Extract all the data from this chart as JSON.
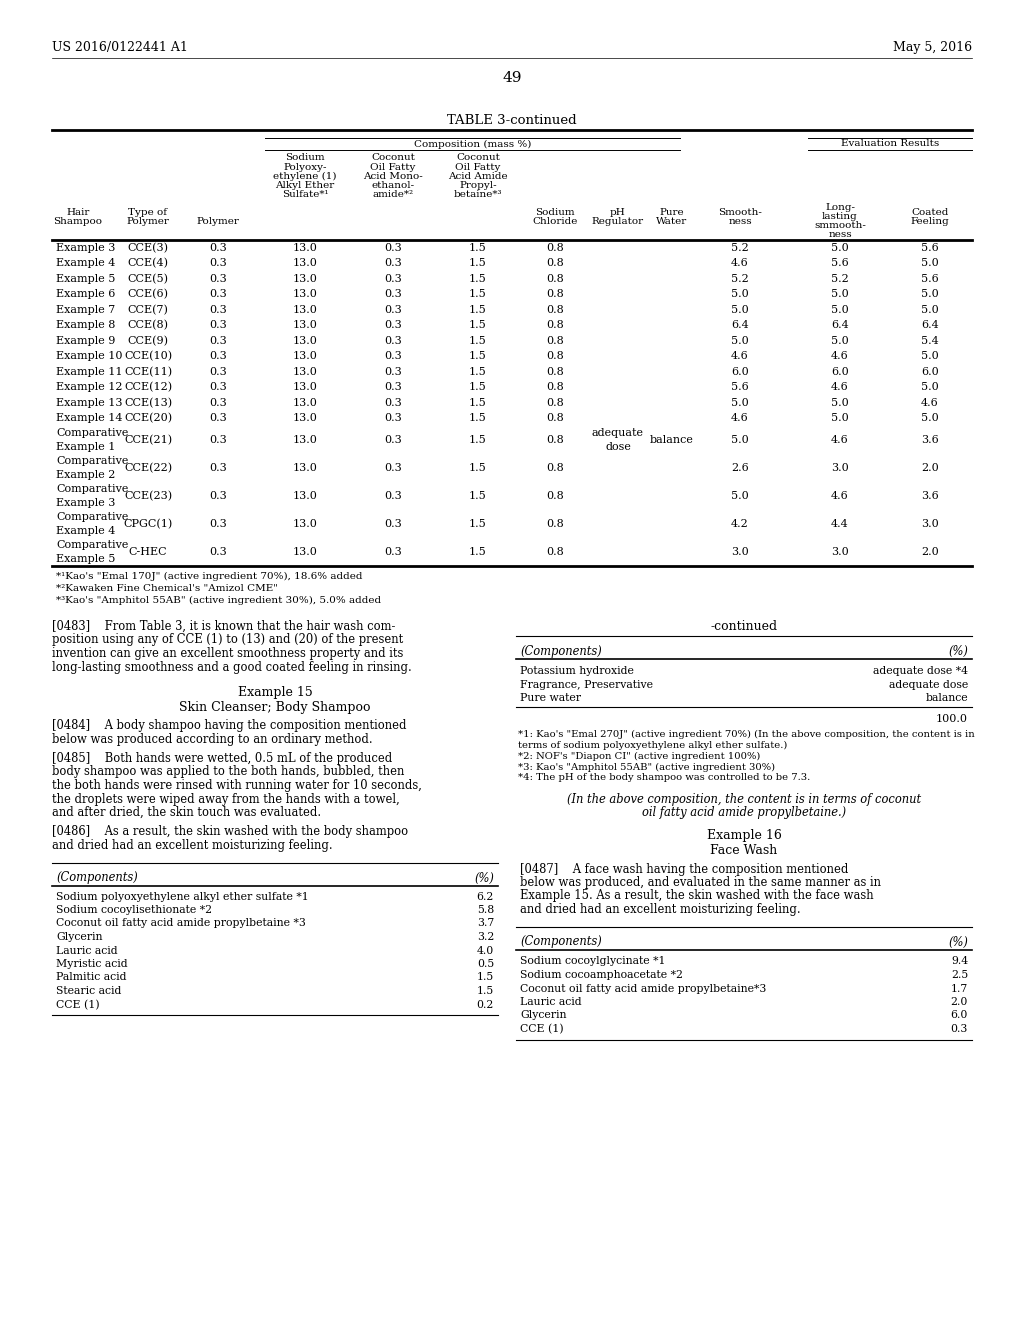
{
  "page_header_left": "US 2016/0122441 A1",
  "page_header_right": "May 5, 2016",
  "page_number": "49",
  "table_title": "TABLE 3-continued",
  "rows": [
    [
      "Example 3",
      "CCE(3)",
      "0.3",
      "13.0",
      "0.3",
      "1.5",
      "0.8",
      "",
      "",
      "5.2",
      "5.0",
      "5.6"
    ],
    [
      "Example 4",
      "CCE(4)",
      "0.3",
      "13.0",
      "0.3",
      "1.5",
      "0.8",
      "",
      "",
      "4.6",
      "5.6",
      "5.0"
    ],
    [
      "Example 5",
      "CCE(5)",
      "0.3",
      "13.0",
      "0.3",
      "1.5",
      "0.8",
      "",
      "",
      "5.2",
      "5.2",
      "5.6"
    ],
    [
      "Example 6",
      "CCE(6)",
      "0.3",
      "13.0",
      "0.3",
      "1.5",
      "0.8",
      "",
      "",
      "5.0",
      "5.0",
      "5.0"
    ],
    [
      "Example 7",
      "CCE(7)",
      "0.3",
      "13.0",
      "0.3",
      "1.5",
      "0.8",
      "",
      "",
      "5.0",
      "5.0",
      "5.0"
    ],
    [
      "Example 8",
      "CCE(8)",
      "0.3",
      "13.0",
      "0.3",
      "1.5",
      "0.8",
      "",
      "",
      "6.4",
      "6.4",
      "6.4"
    ],
    [
      "Example 9",
      "CCE(9)",
      "0.3",
      "13.0",
      "0.3",
      "1.5",
      "0.8",
      "",
      "",
      "5.0",
      "5.0",
      "5.4"
    ],
    [
      "Example 10",
      "CCE(10)",
      "0.3",
      "13.0",
      "0.3",
      "1.5",
      "0.8",
      "",
      "",
      "4.6",
      "4.6",
      "5.0"
    ],
    [
      "Example 11",
      "CCE(11)",
      "0.3",
      "13.0",
      "0.3",
      "1.5",
      "0.8",
      "",
      "",
      "6.0",
      "6.0",
      "6.0"
    ],
    [
      "Example 12",
      "CCE(12)",
      "0.3",
      "13.0",
      "0.3",
      "1.5",
      "0.8",
      "",
      "",
      "5.6",
      "4.6",
      "5.0"
    ],
    [
      "Example 13",
      "CCE(13)",
      "0.3",
      "13.0",
      "0.3",
      "1.5",
      "0.8",
      "",
      "",
      "5.0",
      "5.0",
      "4.6"
    ],
    [
      "Example 14",
      "CCE(20)",
      "0.3",
      "13.0",
      "0.3",
      "1.5",
      "0.8",
      "",
      "",
      "4.6",
      "5.0",
      "5.0"
    ],
    [
      "Comparative\nExample 1",
      "CCE(21)",
      "0.3",
      "13.0",
      "0.3",
      "1.5",
      "0.8",
      "adequate\ndose",
      "balance",
      "5.0",
      "4.6",
      "3.6"
    ],
    [
      "Comparative\nExample 2",
      "CCE(22)",
      "0.3",
      "13.0",
      "0.3",
      "1.5",
      "0.8",
      "",
      "",
      "2.6",
      "3.0",
      "2.0"
    ],
    [
      "Comparative\nExample 3",
      "CCE(23)",
      "0.3",
      "13.0",
      "0.3",
      "1.5",
      "0.8",
      "",
      "",
      "5.0",
      "4.6",
      "3.6"
    ],
    [
      "Comparative\nExample 4",
      "CPGC(1)",
      "0.3",
      "13.0",
      "0.3",
      "1.5",
      "0.8",
      "",
      "",
      "4.2",
      "4.4",
      "3.0"
    ],
    [
      "Comparative\nExample 5",
      "C-HEC",
      "0.3",
      "13.0",
      "0.3",
      "1.5",
      "0.8",
      "",
      "",
      "3.0",
      "3.0",
      "2.0"
    ]
  ],
  "footnotes": [
    "*¹Kao's \"Emal 170J\" (active ingredient 70%), 18.6% added",
    "*²Kawaken Fine Chemical's \"Amizol CME\"",
    "*³Kao's \"Amphitol 55AB\" (active ingredient 30%), 5.0% added"
  ],
  "para_0483_lines": [
    "[0483]    From Table 3, it is known that the hair wash com-",
    "position using any of CCE (1) to (13) and (20) of the present",
    "invention can give an excellent smoothness property and its",
    "long-lasting smoothness and a good coated feeling in rinsing."
  ],
  "example15_title": "Example 15",
  "example15_subtitle": "Skin Cleanser; Body Shampoo",
  "para_0484_lines": [
    "[0484]    A body shampoo having the composition mentioned",
    "below was produced according to an ordinary method."
  ],
  "para_0485_lines": [
    "[0485]    Both hands were wetted, 0.5 mL of the produced",
    "body shampoo was applied to the both hands, bubbled, then",
    "the both hands were rinsed with running water for 10 seconds,",
    "the droplets were wiped away from the hands with a towel,",
    "and after dried, the skin touch was evaluated."
  ],
  "para_0486_lines": [
    "[0486]    As a result, the skin washed with the body shampoo",
    "and dried had an excellent moisturizing feeling."
  ],
  "left_table_rows": [
    [
      "Sodium polyoxyethylene alkyl ether sulfate *1",
      "6.2"
    ],
    [
      "Sodium cocoylisethionate *2",
      "5.8"
    ],
    [
      "Coconut oil fatty acid amide propylbetaine *3",
      "3.7"
    ],
    [
      "Glycerin",
      "3.2"
    ],
    [
      "Lauric acid",
      "4.0"
    ],
    [
      "Myristic acid",
      "0.5"
    ],
    [
      "Palmitic acid",
      "1.5"
    ],
    [
      "Stearic acid",
      "1.5"
    ],
    [
      "CCE (1)",
      "0.2"
    ]
  ],
  "right_continued_title": "-continued",
  "right_table1_rows": [
    [
      "Potassium hydroxide",
      "adequate dose *4"
    ],
    [
      "Fragrance, Preservative",
      "adequate dose"
    ],
    [
      "Pure water",
      "balance"
    ]
  ],
  "right_table1_total": "100.0",
  "right_footnotes": [
    "*1: Kao's \"Emal 270J\" (active ingredient 70%) (In the above composition, the content is in",
    "terms of sodium polyoxyethylene alkyl ether sulfate.)",
    "*2: NOF's \"Diapon CI\" (active ingredient 100%)",
    "*3: Kao's \"Amphitol 55AB\" (active ingredient 30%)",
    "*4: The pH of the body shampoo was controlled to be 7.3."
  ],
  "right_italic_lines": [
    "(In the above composition, the content is in terms of coconut",
    "oil fatty acid amide propylbetaine.)"
  ],
  "example16_title": "Example 16",
  "example16_subtitle": "Face Wash",
  "para_0487_lines": [
    "[0487]    A face wash having the composition mentioned",
    "below was produced, and evaluated in the same manner as in",
    "Example 15. As a result, the skin washed with the face wash",
    "and dried had an excellent moisturizing feeling."
  ],
  "right_table2_rows": [
    [
      "Sodium cocoylglycinate *1",
      "9.4"
    ],
    [
      "Sodium cocoamphoacetate *2",
      "2.5"
    ],
    [
      "Coconut oil fatty acid amide propylbetaine*3",
      "1.7"
    ],
    [
      "Lauric acid",
      "2.0"
    ],
    [
      "Glycerin",
      "6.0"
    ],
    [
      "CCE (1)",
      "0.3"
    ]
  ]
}
